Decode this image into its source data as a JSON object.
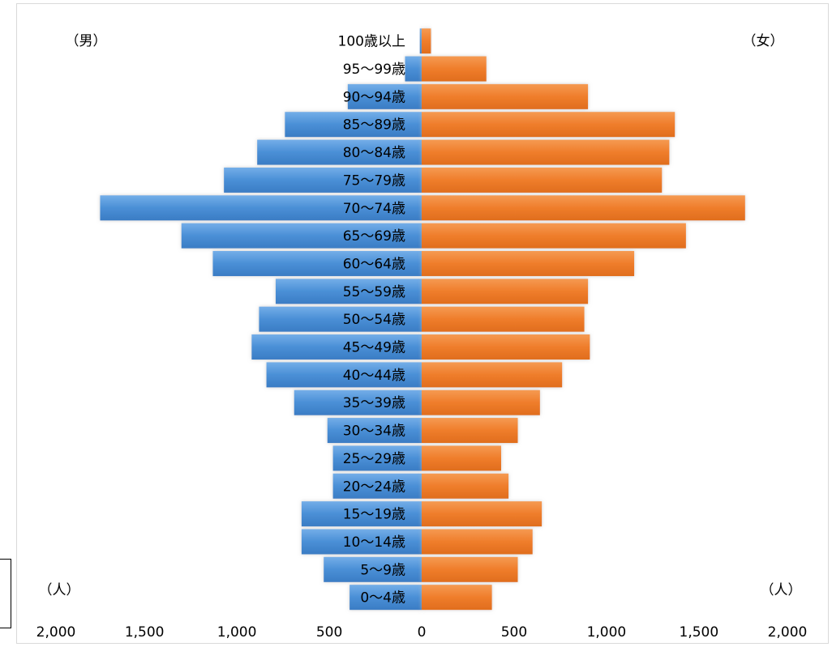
{
  "chart_data": {
    "type": "bar",
    "orientation": "horizontal",
    "title": "",
    "left_label": "（男）",
    "right_label": "（女）",
    "unit_left": "（人）",
    "unit_right": "（人）",
    "xlim": [
      0,
      2000
    ],
    "tick_labels": [
      "2,000",
      "1,500",
      "1,000",
      "500",
      "0",
      "500",
      "1,000",
      "1,500",
      "2,000"
    ],
    "categories": [
      "100歳以上",
      "95～99歳",
      "90～94歳",
      "85～89歳",
      "80～84歳",
      "75～79歳",
      "70～74歳",
      "65～69歳",
      "60～64歳",
      "55～59歳",
      "50～54歳",
      "45～49歳",
      "40～44歳",
      "35～39歳",
      "30～34歳",
      "25～29歳",
      "20～24歳",
      "15～19歳",
      "10～14歳",
      "5～9歳",
      "0～4歳"
    ],
    "series": [
      {
        "name": "男",
        "color": "#4a8fd6",
        "values": [
          10,
          90,
          400,
          740,
          890,
          1070,
          1740,
          1300,
          1130,
          790,
          880,
          920,
          840,
          690,
          510,
          480,
          480,
          650,
          650,
          530,
          390
        ]
      },
      {
        "name": "女",
        "color": "#ef7d2b",
        "values": [
          50,
          350,
          900,
          1370,
          1340,
          1300,
          1750,
          1430,
          1150,
          900,
          880,
          910,
          760,
          640,
          520,
          430,
          470,
          650,
          600,
          520,
          380
        ]
      }
    ]
  }
}
